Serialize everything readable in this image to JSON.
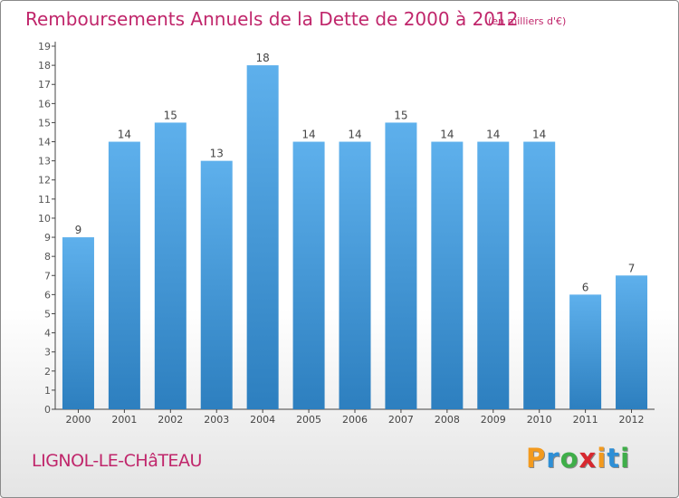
{
  "header": {
    "title": "Remboursements Annuels de la Dette de 2000 à 2012",
    "unit": "(en milliers d'€)"
  },
  "footer": {
    "commune": "LIGNOL-LE-CHâTEAU",
    "logo_letters": [
      "P",
      "r",
      "o",
      "x",
      "i",
      "t",
      "i"
    ],
    "logo_colors": [
      "#f39a1e",
      "#2e8fd6",
      "#3fae49",
      "#d7282f",
      "#f39a1e",
      "#2e8fd6",
      "#3fae49"
    ]
  },
  "chart_data": {
    "type": "bar",
    "title": "Remboursements Annuels de la Dette de 2000 à 2012",
    "subtitle": "(en milliers d'€)",
    "categories": [
      "2000",
      "2001",
      "2002",
      "2003",
      "2004",
      "2005",
      "2006",
      "2007",
      "2008",
      "2009",
      "2010",
      "2011",
      "2012"
    ],
    "values": [
      9,
      14,
      15,
      13,
      18,
      14,
      14,
      15,
      14,
      14,
      14,
      6,
      7
    ],
    "xlabel": "",
    "ylabel": "",
    "ylim": [
      0,
      19
    ],
    "yticks": [
      0,
      1,
      2,
      3,
      4,
      5,
      6,
      7,
      8,
      9,
      10,
      11,
      12,
      13,
      14,
      15,
      16,
      17,
      18,
      19
    ],
    "grid": false,
    "bar_color_top": "#5eb0ec",
    "bar_color_bottom": "#2d7fbf"
  }
}
